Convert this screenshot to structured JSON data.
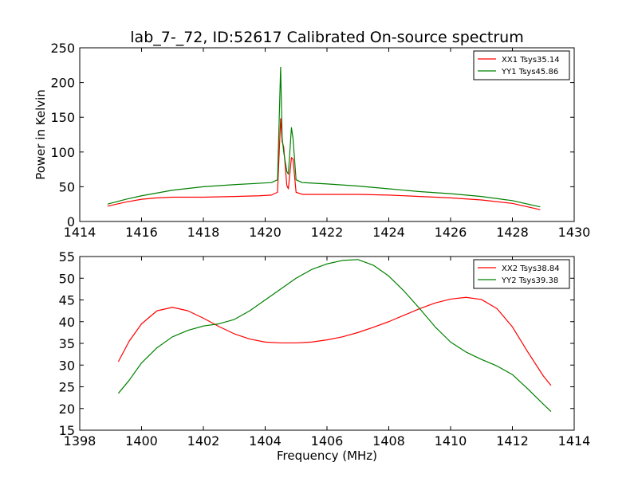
{
  "chart_data": [
    {
      "type": "line",
      "title": "lab_7-_72, ID:52617 Calibrated On-source spectrum",
      "xlabel": "",
      "ylabel": "Power in Kelvin",
      "xlim": [
        1414,
        1430
      ],
      "ylim": [
        0,
        250
      ],
      "xticks": [
        "1414",
        "1416",
        "1418",
        "1420",
        "1422",
        "1424",
        "1426",
        "1428",
        "1430"
      ],
      "yticks": [
        "0",
        "50",
        "100",
        "150",
        "200",
        "250"
      ],
      "legend_position": "top-right",
      "grid": false,
      "series": [
        {
          "name": "XX1 Tsys35.14",
          "color": "#ff0000",
          "x": [
            1414.9,
            1415.5,
            1416.0,
            1416.5,
            1417.0,
            1418.0,
            1419.0,
            1419.8,
            1420.2,
            1420.4,
            1420.5,
            1420.55,
            1420.6,
            1420.7,
            1420.75,
            1420.85,
            1420.9,
            1421.0,
            1421.2,
            1422.0,
            1423.0,
            1424.0,
            1425.0,
            1426.0,
            1427.0,
            1428.0,
            1428.9
          ],
          "values": [
            22,
            28,
            32,
            34,
            35,
            35,
            36,
            37,
            38,
            42,
            148,
            115,
            107,
            52,
            47,
            92,
            90,
            42,
            39,
            39,
            39,
            38,
            36,
            34,
            31,
            26,
            17
          ]
        },
        {
          "name": "YY1 Tsys45.86",
          "color": "#008000",
          "x": [
            1414.9,
            1415.5,
            1416.0,
            1416.5,
            1417.0,
            1418.0,
            1419.0,
            1419.8,
            1420.2,
            1420.4,
            1420.5,
            1420.55,
            1420.6,
            1420.7,
            1420.75,
            1420.85,
            1420.9,
            1421.0,
            1421.2,
            1422.0,
            1423.0,
            1424.0,
            1425.0,
            1426.0,
            1427.0,
            1428.0,
            1428.9
          ],
          "values": [
            25,
            32,
            37,
            41,
            45,
            50,
            53,
            55,
            56,
            60,
            222,
            120,
            100,
            72,
            68,
            135,
            120,
            60,
            56,
            54,
            51,
            47,
            43,
            40,
            36,
            30,
            21
          ]
        }
      ]
    },
    {
      "type": "line",
      "title": "",
      "xlabel": "Frequency (MHz)",
      "ylabel": "",
      "xlim": [
        1398,
        1414
      ],
      "ylim": [
        15,
        55
      ],
      "xticks": [
        "1398",
        "1400",
        "1402",
        "1404",
        "1406",
        "1408",
        "1410",
        "1412",
        "1414"
      ],
      "yticks": [
        "15",
        "20",
        "25",
        "30",
        "35",
        "40",
        "45",
        "50",
        "55"
      ],
      "legend_position": "top-right",
      "grid": false,
      "series": [
        {
          "name": "XX2 Tsys38.84",
          "color": "#ff0000",
          "x": [
            1399.25,
            1399.6,
            1400.0,
            1400.5,
            1401.0,
            1401.5,
            1402.0,
            1402.5,
            1403.0,
            1403.5,
            1404.0,
            1404.5,
            1405.0,
            1405.5,
            1406.0,
            1406.5,
            1407.0,
            1407.5,
            1408.0,
            1408.5,
            1409.0,
            1409.5,
            1410.0,
            1410.5,
            1411.0,
            1411.5,
            1412.0,
            1412.5,
            1413.0,
            1413.25
          ],
          "values": [
            30.8,
            35.5,
            39.5,
            42.5,
            43.3,
            42.5,
            40.8,
            38.9,
            37.2,
            36.0,
            35.3,
            35.1,
            35.1,
            35.3,
            35.8,
            36.5,
            37.5,
            38.7,
            40.0,
            41.5,
            43.0,
            44.3,
            45.2,
            45.6,
            45.1,
            43.0,
            38.8,
            33.0,
            27.5,
            25.3
          ]
        },
        {
          "name": "YY2 Tsys39.38",
          "color": "#008000",
          "x": [
            1399.25,
            1399.6,
            1400.0,
            1400.5,
            1401.0,
            1401.5,
            1402.0,
            1402.5,
            1403.0,
            1403.5,
            1404.0,
            1404.5,
            1405.0,
            1405.5,
            1406.0,
            1406.5,
            1407.0,
            1407.5,
            1408.0,
            1408.5,
            1409.0,
            1409.5,
            1410.0,
            1410.5,
            1411.0,
            1411.5,
            1412.0,
            1412.5,
            1413.0,
            1413.25
          ],
          "values": [
            23.5,
            26.5,
            30.5,
            34.0,
            36.5,
            38.0,
            39.0,
            39.5,
            40.5,
            42.5,
            45.0,
            47.5,
            50.0,
            52.0,
            53.3,
            54.1,
            54.3,
            53.0,
            50.5,
            47.0,
            43.0,
            38.8,
            35.3,
            33.0,
            31.3,
            29.8,
            27.8,
            24.5,
            21.0,
            19.3
          ]
        }
      ]
    }
  ]
}
